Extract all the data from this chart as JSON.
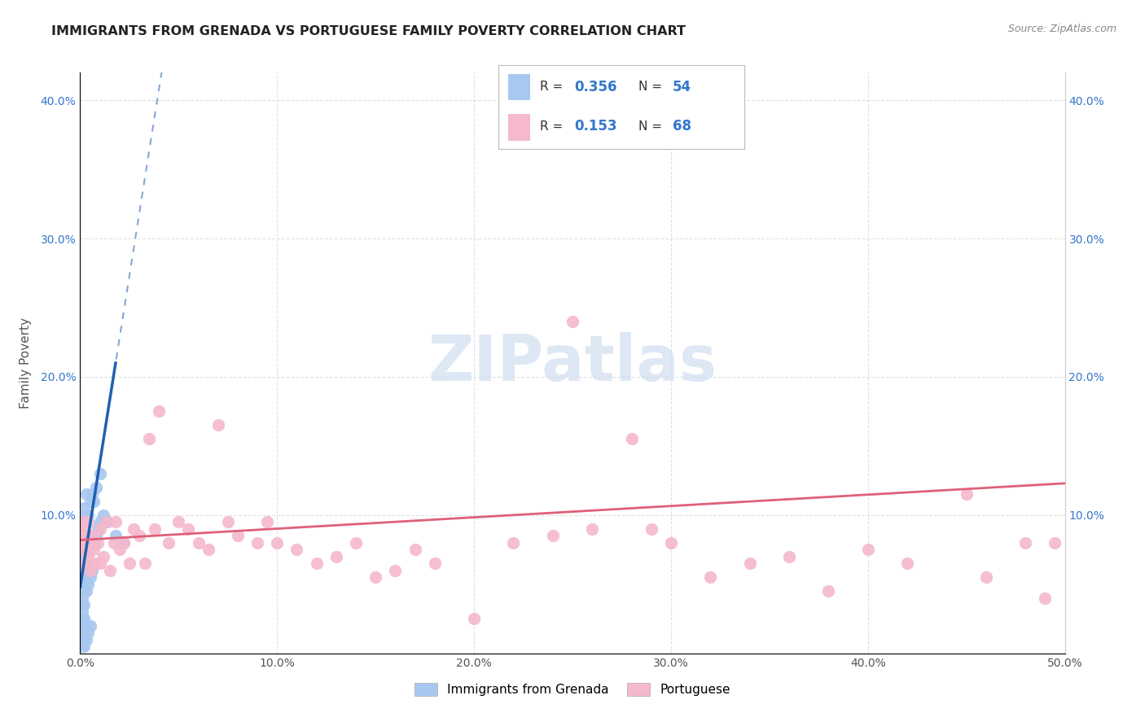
{
  "title": "IMMIGRANTS FROM GRENADA VS PORTUGUESE FAMILY POVERTY CORRELATION CHART",
  "source": "Source: ZipAtlas.com",
  "ylabel": "Family Poverty",
  "xlim": [
    0.0,
    0.5
  ],
  "ylim": [
    0.0,
    0.42
  ],
  "xticks": [
    0.0,
    0.1,
    0.2,
    0.3,
    0.4,
    0.5
  ],
  "xtick_labels": [
    "0.0%",
    "10.0%",
    "20.0%",
    "30.0%",
    "40.0%",
    "50.0%"
  ],
  "yticks": [
    0.0,
    0.1,
    0.2,
    0.3,
    0.4
  ],
  "ytick_labels": [
    "",
    "10.0%",
    "20.0%",
    "30.0%",
    "40.0%"
  ],
  "legend_label1": "Immigrants from Grenada",
  "legend_label2": "Portuguese",
  "R1": "0.356",
  "N1": "54",
  "R2": "0.153",
  "N2": "68",
  "color1": "#a8c8f0",
  "color2": "#f5b8cc",
  "line_color1": "#2060b0",
  "line_color2": "#e0607a",
  "background_color": "#ffffff",
  "grid_color": "#e0e0e0",
  "title_color": "#222222",
  "source_color": "#888888",
  "axis_label_color": "#555555",
  "tick_color": "#3377cc",
  "watermark_color": "#d0dff0",
  "grenada_x": [
    0.001,
    0.001,
    0.001,
    0.001,
    0.001,
    0.001,
    0.001,
    0.001,
    0.001,
    0.001,
    0.001,
    0.001,
    0.001,
    0.002,
    0.002,
    0.002,
    0.002,
    0.002,
    0.002,
    0.002,
    0.002,
    0.002,
    0.002,
    0.002,
    0.002,
    0.003,
    0.003,
    0.003,
    0.003,
    0.003,
    0.003,
    0.003,
    0.004,
    0.004,
    0.004,
    0.004,
    0.005,
    0.005,
    0.005,
    0.005,
    0.006,
    0.006,
    0.006,
    0.007,
    0.007,
    0.008,
    0.008,
    0.009,
    0.01,
    0.01,
    0.012,
    0.014,
    0.018,
    0.022
  ],
  "grenada_y": [
    0.005,
    0.01,
    0.015,
    0.02,
    0.025,
    0.03,
    0.035,
    0.04,
    0.045,
    0.05,
    0.06,
    0.07,
    0.085,
    0.005,
    0.01,
    0.015,
    0.025,
    0.035,
    0.045,
    0.055,
    0.065,
    0.075,
    0.085,
    0.095,
    0.105,
    0.01,
    0.02,
    0.045,
    0.065,
    0.085,
    0.1,
    0.115,
    0.015,
    0.05,
    0.075,
    0.1,
    0.02,
    0.055,
    0.08,
    0.11,
    0.06,
    0.085,
    0.115,
    0.08,
    0.11,
    0.085,
    0.12,
    0.09,
    0.095,
    0.13,
    0.1,
    0.095,
    0.085,
    0.08
  ],
  "portuguese_x": [
    0.001,
    0.001,
    0.002,
    0.002,
    0.003,
    0.003,
    0.004,
    0.004,
    0.005,
    0.005,
    0.006,
    0.007,
    0.008,
    0.009,
    0.01,
    0.01,
    0.012,
    0.013,
    0.015,
    0.017,
    0.018,
    0.02,
    0.022,
    0.025,
    0.027,
    0.03,
    0.033,
    0.035,
    0.038,
    0.04,
    0.045,
    0.05,
    0.055,
    0.06,
    0.065,
    0.07,
    0.075,
    0.08,
    0.09,
    0.095,
    0.1,
    0.11,
    0.12,
    0.13,
    0.14,
    0.15,
    0.16,
    0.17,
    0.18,
    0.2,
    0.22,
    0.24,
    0.25,
    0.26,
    0.28,
    0.29,
    0.3,
    0.32,
    0.34,
    0.36,
    0.38,
    0.4,
    0.42,
    0.45,
    0.46,
    0.48,
    0.49,
    0.495
  ],
  "portuguese_y": [
    0.095,
    0.08,
    0.09,
    0.075,
    0.085,
    0.065,
    0.095,
    0.07,
    0.08,
    0.06,
    0.085,
    0.075,
    0.065,
    0.08,
    0.065,
    0.09,
    0.07,
    0.095,
    0.06,
    0.08,
    0.095,
    0.075,
    0.08,
    0.065,
    0.09,
    0.085,
    0.065,
    0.155,
    0.09,
    0.175,
    0.08,
    0.095,
    0.09,
    0.08,
    0.075,
    0.165,
    0.095,
    0.085,
    0.08,
    0.095,
    0.08,
    0.075,
    0.065,
    0.07,
    0.08,
    0.055,
    0.06,
    0.075,
    0.065,
    0.025,
    0.08,
    0.085,
    0.24,
    0.09,
    0.155,
    0.09,
    0.08,
    0.055,
    0.065,
    0.07,
    0.045,
    0.075,
    0.065,
    0.115,
    0.055,
    0.08,
    0.04,
    0.08
  ]
}
